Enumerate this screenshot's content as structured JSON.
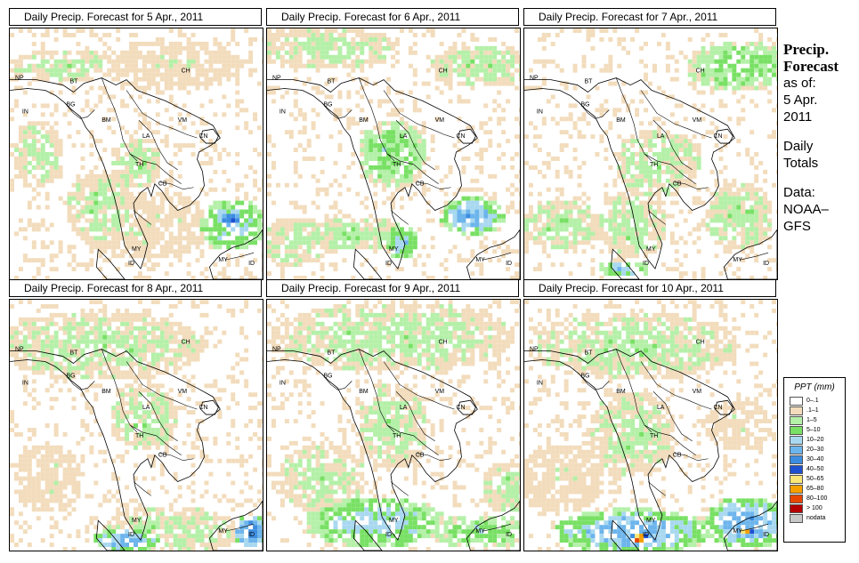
{
  "panels": [
    {
      "title": "Daily Precip. Forecast for  5 Apr., 2011"
    },
    {
      "title": "Daily Precip. Forecast for  6 Apr., 2011"
    },
    {
      "title": "Daily Precip. Forecast for  7 Apr., 2011"
    },
    {
      "title": "Daily Precip. Forecast for  8 Apr., 2011"
    },
    {
      "title": "Daily Precip. Forecast for  9 Apr., 2011"
    },
    {
      "title": "Daily Precip. Forecast for  10 Apr., 2011"
    }
  ],
  "map_labels": [
    "NP",
    "BT",
    "BG",
    "IN",
    "BM",
    "CH",
    "VM",
    "LA",
    "CN",
    "TH",
    "CB",
    "MY",
    "ID",
    "MY",
    "ID"
  ],
  "sidebar": {
    "title_line1": "Precip.",
    "title_line2": "Forecast",
    "asof_line1": "as of:",
    "asof_line2": "5 Apr.",
    "asof_line3": "2011",
    "totals_line1": "Daily",
    "totals_line2": "Totals",
    "data_line1": "Data:",
    "data_line2": "NOAA–",
    "data_line3": "GFS"
  },
  "legend": {
    "title": "PPT (mm)",
    "items": [
      {
        "label": "0–.1",
        "color": "#ffffff"
      },
      {
        "label": ".1–1",
        "color": "#f2dcbc"
      },
      {
        "label": "1–5",
        "color": "#b4f0a8"
      },
      {
        "label": "5–10",
        "color": "#78e064"
      },
      {
        "label": "10–20",
        "color": "#a8d8f0"
      },
      {
        "label": "20–30",
        "color": "#6cb4ec"
      },
      {
        "label": "30–40",
        "color": "#3c8ce0"
      },
      {
        "label": "40–50",
        "color": "#1e50d2"
      },
      {
        "label": "50–65",
        "color": "#fae678"
      },
      {
        "label": "65–80",
        "color": "#f5a000"
      },
      {
        "label": "80–100",
        "color": "#e64600"
      },
      {
        "label": "> 100",
        "color": "#b40000"
      },
      {
        "label": "nodata",
        "color": "#c8c8c8"
      }
    ]
  }
}
